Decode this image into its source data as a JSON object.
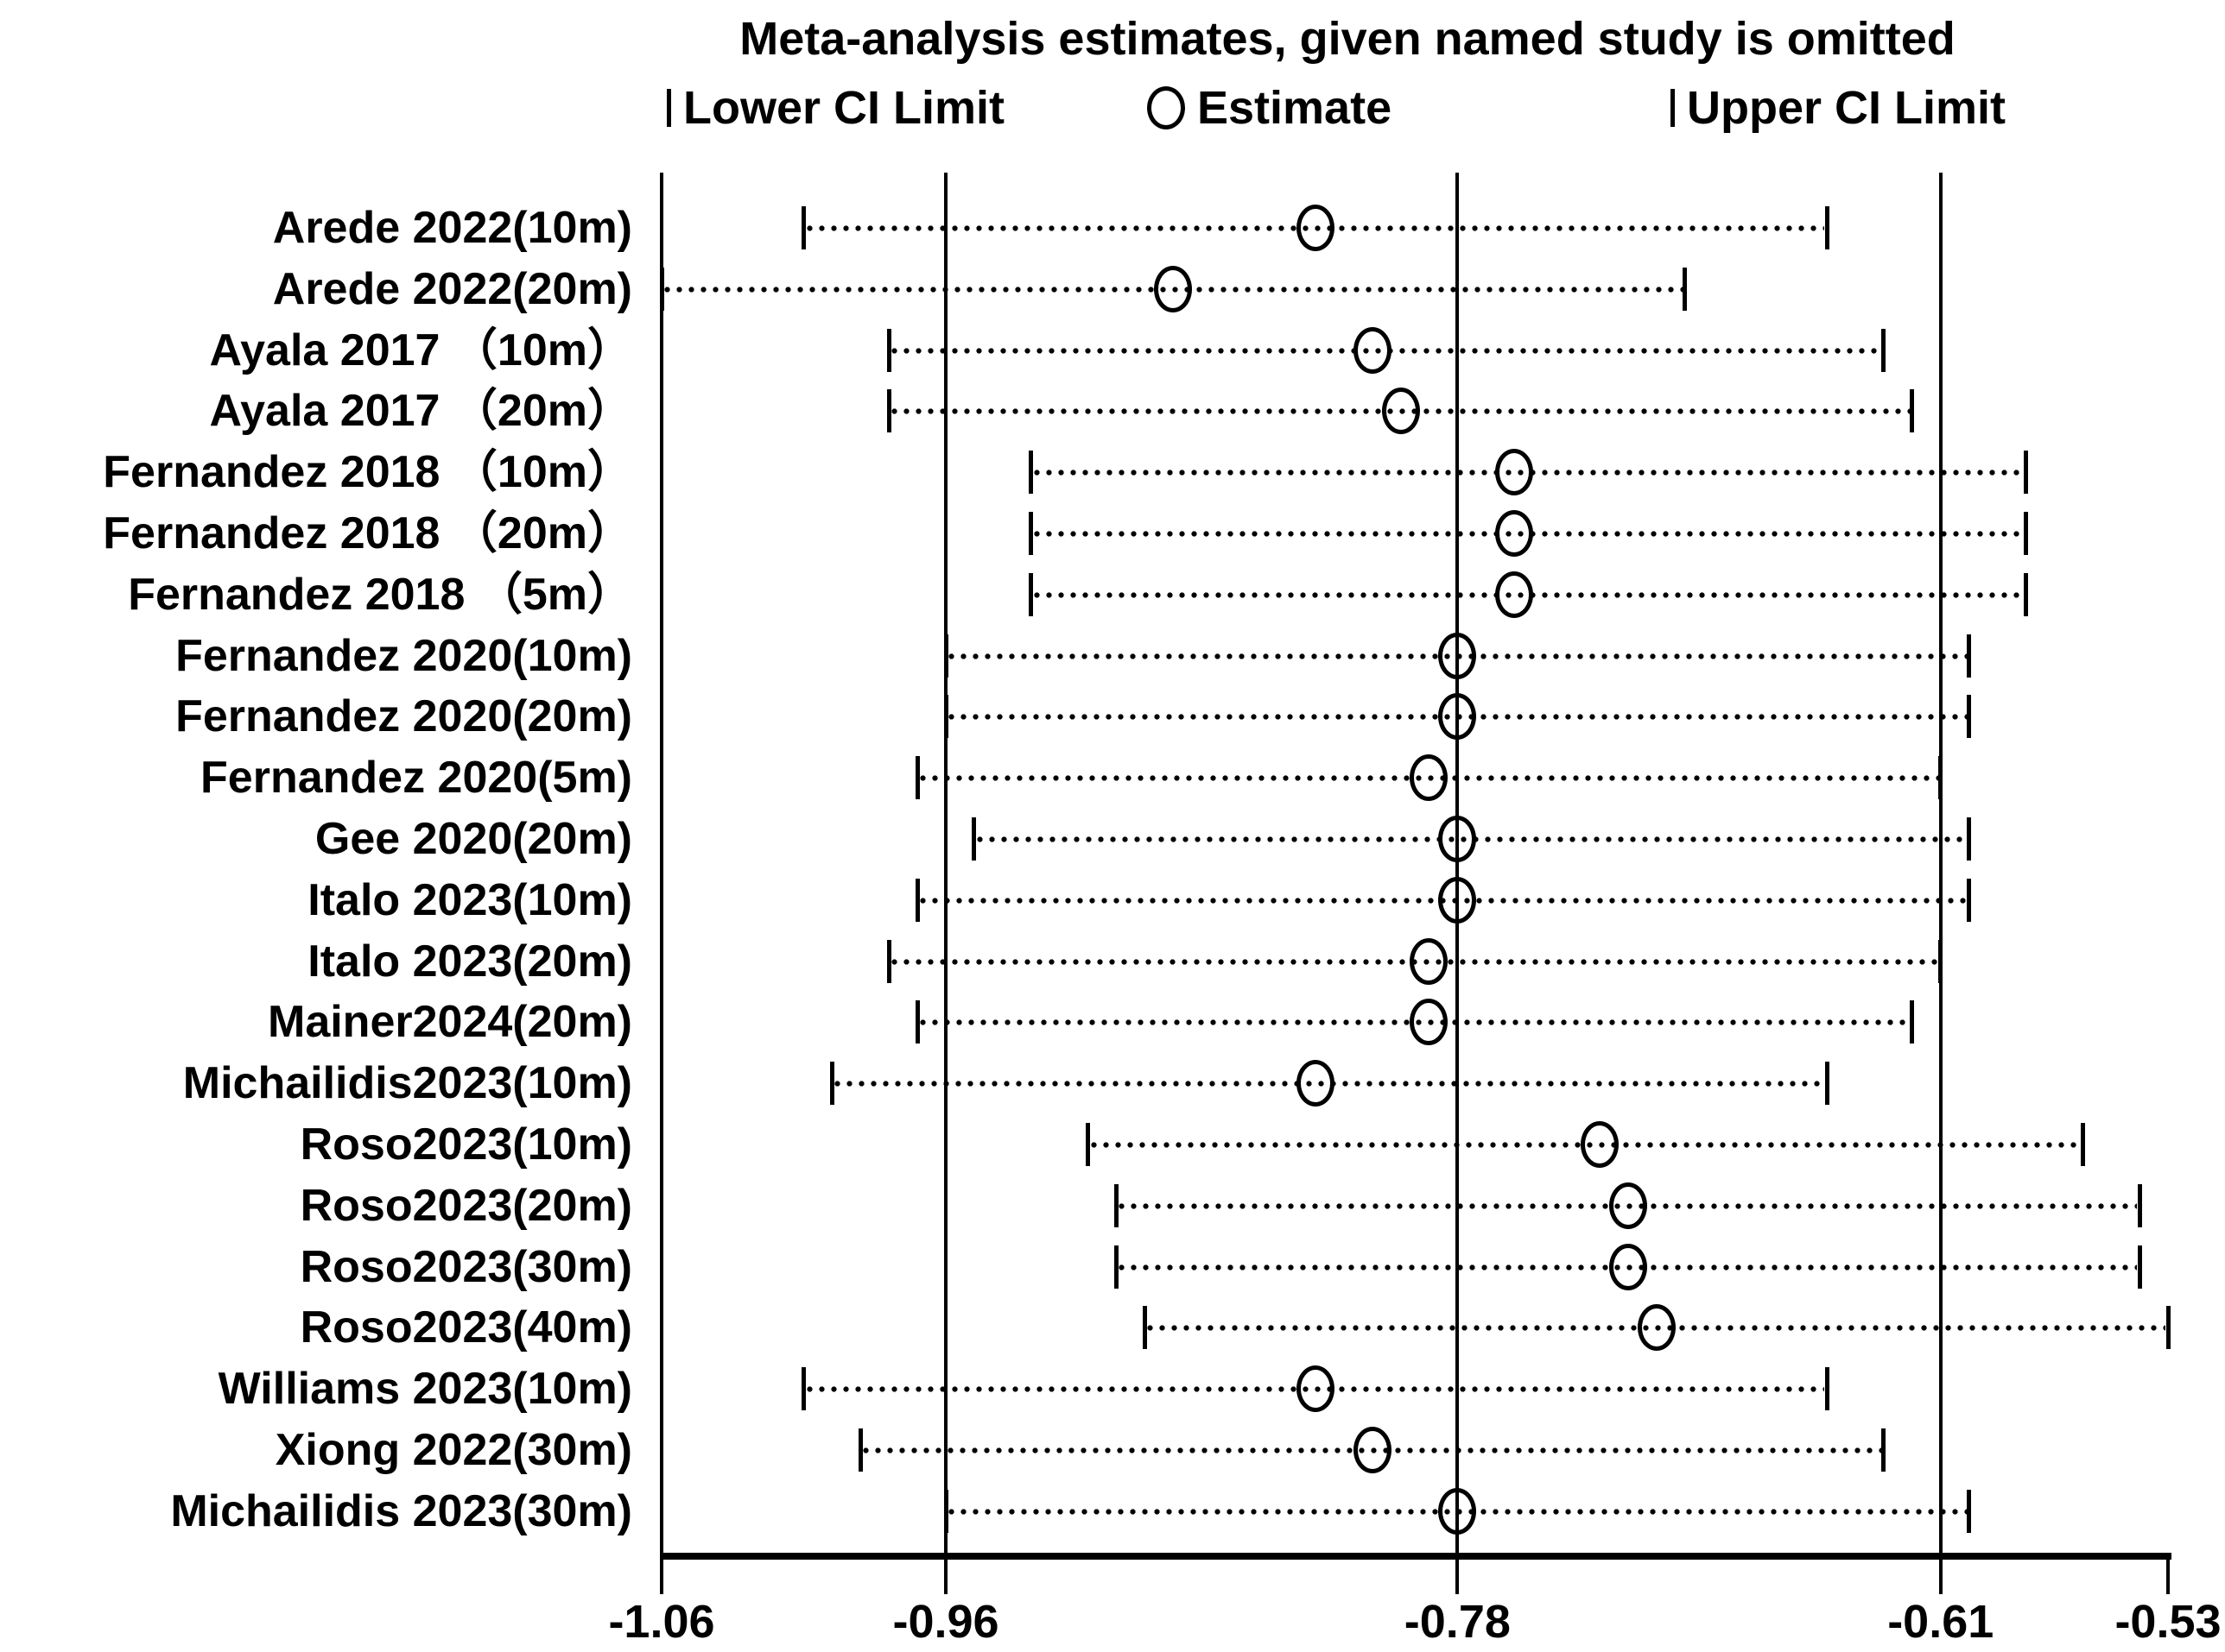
{
  "title": "Meta-analysis estimates, given named study is omitted",
  "legend": {
    "lower_label": "Lower CI Limit",
    "estimate_label": "Estimate",
    "upper_label": "Upper CI Limit"
  },
  "colors": {
    "foreground": "#000000",
    "background": "#ffffff"
  },
  "chart_data": {
    "type": "scatter",
    "subtype": "leave-one-out-sensitivity-forest-plot",
    "title": "Meta-analysis estimates, given named study is omitted",
    "legend_position": "top",
    "grid": "vertical-gridlines",
    "xlabel": "",
    "ylabel": "",
    "x_axis": {
      "range": [
        -1.06,
        -0.53
      ],
      "tick_values": [
        -1.06,
        -0.96,
        -0.78,
        -0.61,
        -0.53
      ],
      "tick_labels": [
        "-1.06",
        "-0.96",
        "-0.78",
        "-0.61",
        "-0.53"
      ],
      "gridline_values": [
        -0.96,
        -0.78,
        -0.61
      ]
    },
    "series": [
      {
        "study": "Arede 2022(10m)",
        "lower": -1.01,
        "estimate": -0.83,
        "upper": -0.65
      },
      {
        "study": "Arede 2022(20m)",
        "lower": -1.06,
        "estimate": -0.88,
        "upper": -0.7
      },
      {
        "study": "Ayala 2017 （10m）",
        "lower": -0.98,
        "estimate": -0.81,
        "upper": -0.63
      },
      {
        "study": "Ayala 2017 （20m）",
        "lower": -0.98,
        "estimate": -0.8,
        "upper": -0.62
      },
      {
        "study": "Fernandez 2018 （10m）",
        "lower": -0.93,
        "estimate": -0.76,
        "upper": -0.58
      },
      {
        "study": "Fernandez 2018 （20m）",
        "lower": -0.93,
        "estimate": -0.76,
        "upper": -0.58
      },
      {
        "study": "Fernandez 2018 （5m）",
        "lower": -0.93,
        "estimate": -0.76,
        "upper": -0.58
      },
      {
        "study": "Fernandez 2020(10m)",
        "lower": -0.96,
        "estimate": -0.78,
        "upper": -0.6
      },
      {
        "study": "Fernandez 2020(20m)",
        "lower": -0.96,
        "estimate": -0.78,
        "upper": -0.6
      },
      {
        "study": "Fernandez 2020(5m)",
        "lower": -0.97,
        "estimate": -0.79,
        "upper": -0.61
      },
      {
        "study": "Gee 2020(20m)",
        "lower": -0.95,
        "estimate": -0.78,
        "upper": -0.6
      },
      {
        "study": "Italo 2023(10m)",
        "lower": -0.97,
        "estimate": -0.78,
        "upper": -0.6
      },
      {
        "study": "Italo 2023(20m)",
        "lower": -0.98,
        "estimate": -0.79,
        "upper": -0.61
      },
      {
        "study": "Mainer2024(20m)",
        "lower": -0.97,
        "estimate": -0.79,
        "upper": -0.62
      },
      {
        "study": "Michailidis2023(10m)",
        "lower": -1.0,
        "estimate": -0.83,
        "upper": -0.65
      },
      {
        "study": "Roso2023(10m)",
        "lower": -0.91,
        "estimate": -0.73,
        "upper": -0.56
      },
      {
        "study": "Roso2023(20m)",
        "lower": -0.9,
        "estimate": -0.72,
        "upper": -0.54
      },
      {
        "study": "Roso2023(30m)",
        "lower": -0.9,
        "estimate": -0.72,
        "upper": -0.54
      },
      {
        "study": "Roso2023(40m)",
        "lower": -0.89,
        "estimate": -0.71,
        "upper": -0.53
      },
      {
        "study": "Williams 2023(10m)",
        "lower": -1.01,
        "estimate": -0.83,
        "upper": -0.65
      },
      {
        "study": "Xiong 2022(30m)",
        "lower": -0.99,
        "estimate": -0.81,
        "upper": -0.63
      },
      {
        "study": "Michailidis 2023(30m)",
        "lower": -0.96,
        "estimate": -0.78,
        "upper": -0.6
      }
    ]
  }
}
